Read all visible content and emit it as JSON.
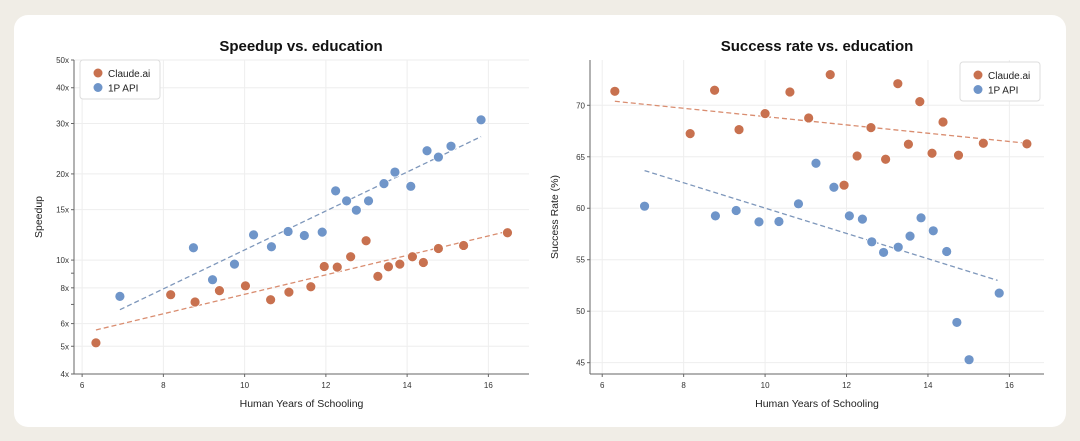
{
  "colors": {
    "claude": "#c8714f",
    "api": "#6f95c9",
    "claude_trend": "#d98d70",
    "api_trend": "#7e97bb"
  },
  "chart_data": [
    {
      "type": "scatter",
      "title": "Speedup vs. education",
      "xlabel": "Human Years of Schooling",
      "ylabel": "Speedup",
      "yscale": "log",
      "xlim": [
        5.8,
        17.0
      ],
      "ylim": [
        4,
        50
      ],
      "xticks": [
        6,
        8,
        10,
        12,
        14,
        16
      ],
      "yticks": [
        {
          "v": 4,
          "label": "4x"
        },
        {
          "v": 5,
          "label": "5x"
        },
        {
          "v": 6,
          "label": "6x"
        },
        {
          "v": 8,
          "label": "8x"
        },
        {
          "v": 10,
          "label": "10x"
        },
        {
          "v": 15,
          "label": "15x"
        },
        {
          "v": 20,
          "label": "20x"
        },
        {
          "v": 30,
          "label": "30x"
        },
        {
          "v": 40,
          "label": "40x"
        },
        {
          "v": 50,
          "label": "50x"
        }
      ],
      "legend": {
        "position": "top-left",
        "entries": [
          "Claude.ai",
          "1P API"
        ]
      },
      "grid": true,
      "series": [
        {
          "name": "Claude.ai",
          "color_key": "claude",
          "x": [
            6.34,
            8.18,
            8.78,
            9.38,
            10.02,
            10.64,
            11.09,
            11.63,
            11.96,
            12.28,
            12.61,
            12.99,
            13.28,
            13.54,
            13.82,
            14.13,
            14.4,
            14.77,
            15.39,
            16.47
          ],
          "y": [
            5.14,
            7.57,
            7.14,
            7.82,
            8.13,
            7.27,
            7.73,
            8.07,
            9.5,
            9.45,
            10.27,
            11.68,
            8.77,
            9.48,
            9.68,
            10.27,
            9.81,
            10.98,
            11.25,
            12.46
          ],
          "trend": {
            "x": [
              6.34,
              16.47
            ],
            "y": [
              5.7,
              12.6
            ]
          }
        },
        {
          "name": "1P API",
          "color_key": "api",
          "x": [
            6.93,
            8.74,
            9.21,
            9.75,
            10.22,
            10.66,
            11.07,
            11.47,
            11.91,
            12.24,
            12.51,
            12.75,
            13.05,
            13.43,
            13.7,
            14.09,
            14.49,
            14.77,
            15.08,
            15.82
          ],
          "y": [
            7.47,
            11.04,
            8.54,
            9.68,
            12.25,
            11.13,
            12.59,
            12.19,
            12.52,
            17.45,
            16.1,
            14.94,
            16.1,
            18.5,
            20.3,
            18.1,
            24.1,
            22.9,
            25.0,
            30.9
          ],
          "trend": {
            "x": [
              6.93,
              15.82
            ],
            "y": [
              6.71,
              27.0
            ]
          }
        }
      ]
    },
    {
      "type": "scatter",
      "title": "Success rate vs. education",
      "xlabel": "Human Years of Schooling",
      "ylabel": "Success Rate (%)",
      "yscale": "linear",
      "xlim": [
        5.7,
        16.85
      ],
      "ylim": [
        43.9,
        74.4
      ],
      "xticks": [
        6,
        8,
        10,
        12,
        14,
        16
      ],
      "yticks": [
        {
          "v": 45,
          "label": "45"
        },
        {
          "v": 50,
          "label": "50"
        },
        {
          "v": 55,
          "label": "55"
        },
        {
          "v": 60,
          "label": "60"
        },
        {
          "v": 65,
          "label": "65"
        },
        {
          "v": 70,
          "label": "70"
        }
      ],
      "legend": {
        "position": "top-right",
        "entries": [
          "Claude.ai",
          "1P API"
        ]
      },
      "grid": true,
      "series": [
        {
          "name": "Claude.ai",
          "color_key": "claude",
          "x": [
            6.31,
            8.16,
            8.76,
            9.36,
            10.0,
            10.61,
            11.07,
            11.6,
            11.94,
            12.26,
            12.6,
            12.96,
            13.26,
            13.52,
            13.8,
            14.1,
            14.37,
            14.75,
            15.36,
            16.43
          ],
          "y": [
            71.36,
            67.25,
            71.46,
            67.64,
            69.19,
            71.29,
            68.77,
            72.98,
            62.24,
            65.08,
            67.83,
            64.76,
            72.1,
            66.22,
            70.36,
            65.34,
            68.38,
            65.15,
            66.31,
            66.25
          ],
          "trend": {
            "x": [
              6.31,
              16.43
            ],
            "y": [
              70.39,
              66.31
            ]
          }
        },
        {
          "name": "1P API",
          "color_key": "api",
          "x": [
            7.04,
            8.78,
            9.29,
            9.85,
            10.34,
            10.82,
            11.25,
            11.69,
            12.07,
            12.39,
            12.62,
            12.91,
            13.27,
            13.56,
            13.83,
            14.13,
            14.46,
            14.71,
            15.01,
            15.75
          ],
          "y": [
            60.2,
            59.26,
            59.78,
            58.68,
            58.71,
            60.43,
            64.37,
            62.04,
            59.26,
            58.94,
            56.74,
            55.71,
            56.22,
            57.29,
            59.07,
            57.81,
            55.8,
            48.91,
            45.29,
            51.76
          ],
          "trend": {
            "x": [
              7.04,
              15.71
            ],
            "y": [
              63.66,
              52.99
            ]
          }
        }
      ]
    }
  ]
}
